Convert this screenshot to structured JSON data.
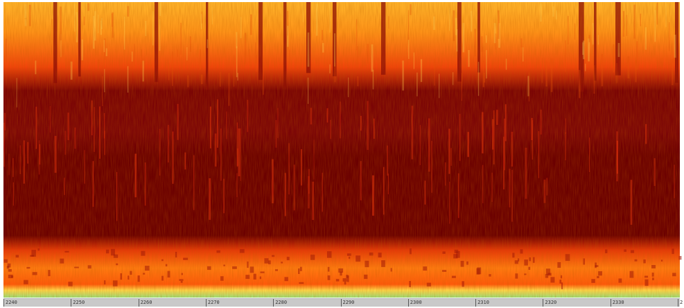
{
  "timeline": {
    "ticks": [
      "2240",
      "2250",
      "2260",
      "2270",
      "2280",
      "2290",
      "2300",
      "2310",
      "2320",
      "2330",
      "2"
    ]
  },
  "colors": {
    "low": "#6b0000",
    "mid": "#d42200",
    "high": "#ff9a1a",
    "peak": "#ffd84a",
    "axis_bg": "#c9c9c9"
  }
}
